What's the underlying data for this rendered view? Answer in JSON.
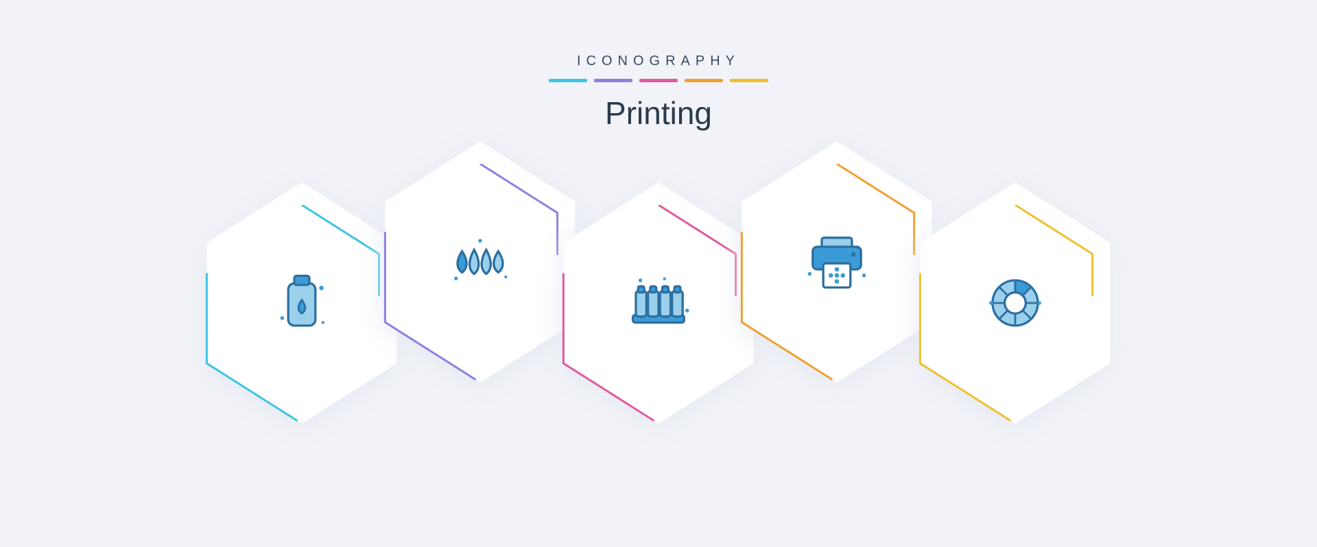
{
  "brand": "ICONOGRAPHY",
  "title": "Printing",
  "colors": {
    "background": "#f1f3f8",
    "brand_text": "#3a4a5a",
    "title_text": "#2b3a4a",
    "hex_fill": "#ffffff",
    "hex_shadow": "#e6e9f2",
    "icon_primary": "#3b9bd6",
    "icon_secondary": "#9bd0ec",
    "icon_stroke": "#2d6fa0",
    "stripes": [
      "#3cc5e0",
      "#8f7fe0",
      "#e05aa0",
      "#f0a030",
      "#f0c030"
    ],
    "hex_borders": [
      "#3cc5e0",
      "#8f7fe0",
      "#e05aa0",
      "#f0a030",
      "#f0c030"
    ]
  },
  "icons": [
    {
      "name": "ink-bottle-icon"
    },
    {
      "name": "ink-drops-icon"
    },
    {
      "name": "ink-cartridges-icon"
    },
    {
      "name": "printer-icon"
    },
    {
      "name": "color-wheel-icon"
    }
  ],
  "hex": {
    "outer_size": 320,
    "inner_size": 260
  }
}
